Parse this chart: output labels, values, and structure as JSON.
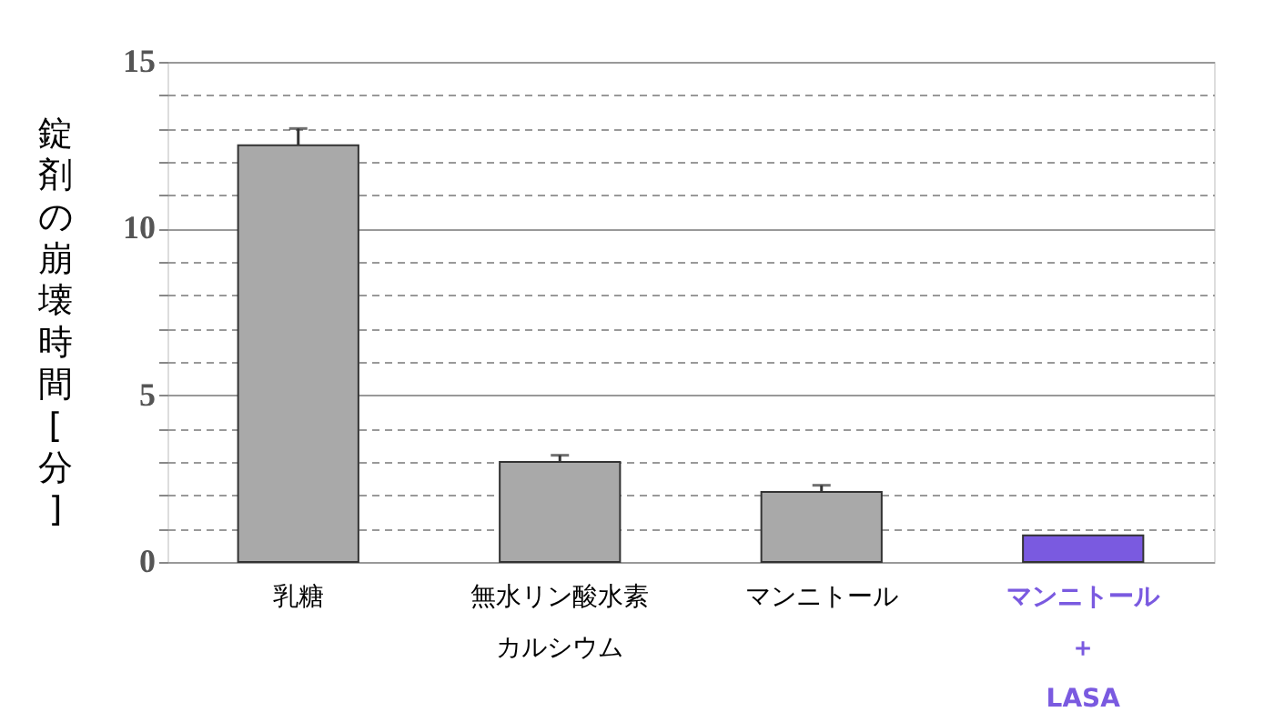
{
  "chart_data": {
    "type": "bar",
    "ylabel": "錠剤の崩壊時間[分]",
    "categories": [
      "乳糖",
      "無水リン酸水素カルシウム",
      "マンニトール",
      "マンニトール＋LASA"
    ],
    "values": [
      12.5,
      3.0,
      2.1,
      0.8
    ],
    "colors": [
      "#a9a9a9",
      "#a9a9a9",
      "#a9a9a9",
      "#7a5ae0"
    ],
    "errors": [
      [
        12.5,
        13.0
      ],
      [
        3.0,
        3.2
      ],
      [
        2.1,
        2.3
      ],
      null
    ],
    "ylim": [
      0,
      15
    ],
    "yticks": [
      0,
      {
        "value": 1,
        "label": null
      },
      {
        "value": 2,
        "label": null
      },
      {
        "value": 3,
        "label": null
      },
      {
        "value": 4,
        "label": null
      },
      5,
      {
        "value": 6,
        "label": null
      },
      {
        "value": 7,
        "label": null
      },
      {
        "value": 8,
        "label": null
      },
      {
        "value": 9,
        "label": null
      },
      10,
      {
        "value": 11,
        "label": null
      },
      {
        "value": 12,
        "label": null
      },
      {
        "value": 13,
        "label": null
      },
      {
        "value": 14,
        "label": null
      },
      15
    ],
    "grid": "y"
  }
}
